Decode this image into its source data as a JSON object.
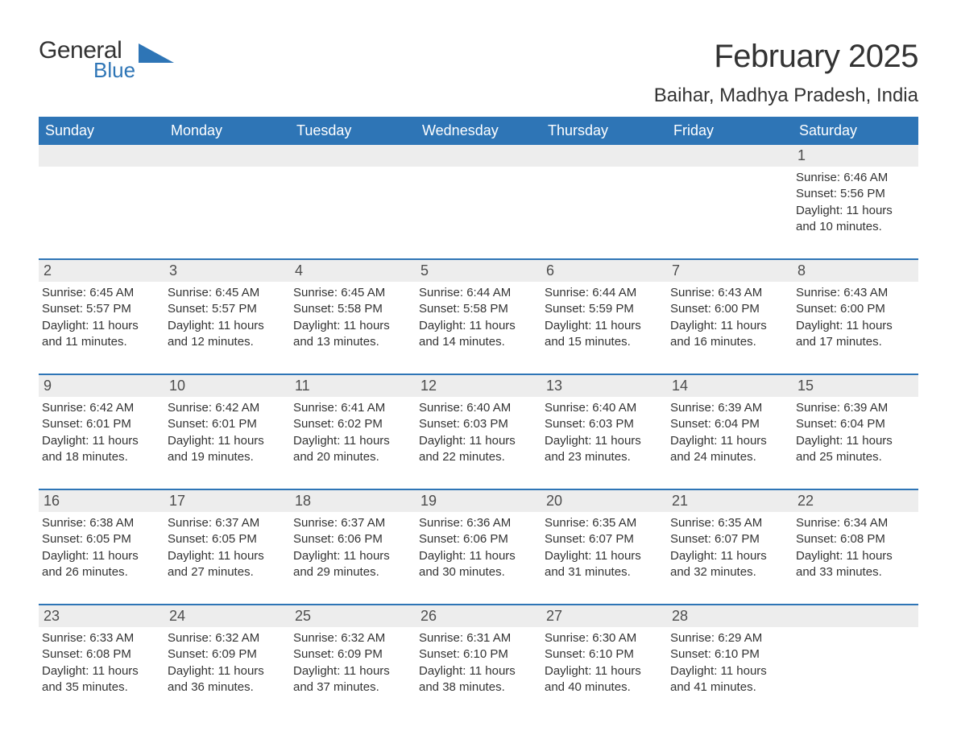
{
  "logo": {
    "word1": "General",
    "word2": "Blue",
    "wedge_color": "#2e75b6"
  },
  "title": "February 2025",
  "location": "Baihar, Madhya Pradesh, India",
  "colors": {
    "header_bg": "#2e75b6",
    "header_text": "#ffffff",
    "daynum_bg": "#ededed",
    "text": "#333333",
    "rule": "#2e75b6",
    "page_bg": "#ffffff"
  },
  "typography": {
    "title_fontsize": 40,
    "location_fontsize": 24,
    "dow_fontsize": 18,
    "daynum_fontsize": 18,
    "body_fontsize": 15
  },
  "layout": {
    "columns": 7,
    "rows": 5,
    "start_dow_index": 6
  },
  "days_of_week": [
    "Sunday",
    "Monday",
    "Tuesday",
    "Wednesday",
    "Thursday",
    "Friday",
    "Saturday"
  ],
  "labels": {
    "sunrise": "Sunrise:",
    "sunset": "Sunset:",
    "daylight": "Daylight:"
  },
  "days": [
    {
      "n": 1,
      "sunrise": "6:46 AM",
      "sunset": "5:56 PM",
      "daylight": "11 hours and 10 minutes."
    },
    {
      "n": 2,
      "sunrise": "6:45 AM",
      "sunset": "5:57 PM",
      "daylight": "11 hours and 11 minutes."
    },
    {
      "n": 3,
      "sunrise": "6:45 AM",
      "sunset": "5:57 PM",
      "daylight": "11 hours and 12 minutes."
    },
    {
      "n": 4,
      "sunrise": "6:45 AM",
      "sunset": "5:58 PM",
      "daylight": "11 hours and 13 minutes."
    },
    {
      "n": 5,
      "sunrise": "6:44 AM",
      "sunset": "5:58 PM",
      "daylight": "11 hours and 14 minutes."
    },
    {
      "n": 6,
      "sunrise": "6:44 AM",
      "sunset": "5:59 PM",
      "daylight": "11 hours and 15 minutes."
    },
    {
      "n": 7,
      "sunrise": "6:43 AM",
      "sunset": "6:00 PM",
      "daylight": "11 hours and 16 minutes."
    },
    {
      "n": 8,
      "sunrise": "6:43 AM",
      "sunset": "6:00 PM",
      "daylight": "11 hours and 17 minutes."
    },
    {
      "n": 9,
      "sunrise": "6:42 AM",
      "sunset": "6:01 PM",
      "daylight": "11 hours and 18 minutes."
    },
    {
      "n": 10,
      "sunrise": "6:42 AM",
      "sunset": "6:01 PM",
      "daylight": "11 hours and 19 minutes."
    },
    {
      "n": 11,
      "sunrise": "6:41 AM",
      "sunset": "6:02 PM",
      "daylight": "11 hours and 20 minutes."
    },
    {
      "n": 12,
      "sunrise": "6:40 AM",
      "sunset": "6:03 PM",
      "daylight": "11 hours and 22 minutes."
    },
    {
      "n": 13,
      "sunrise": "6:40 AM",
      "sunset": "6:03 PM",
      "daylight": "11 hours and 23 minutes."
    },
    {
      "n": 14,
      "sunrise": "6:39 AM",
      "sunset": "6:04 PM",
      "daylight": "11 hours and 24 minutes."
    },
    {
      "n": 15,
      "sunrise": "6:39 AM",
      "sunset": "6:04 PM",
      "daylight": "11 hours and 25 minutes."
    },
    {
      "n": 16,
      "sunrise": "6:38 AM",
      "sunset": "6:05 PM",
      "daylight": "11 hours and 26 minutes."
    },
    {
      "n": 17,
      "sunrise": "6:37 AM",
      "sunset": "6:05 PM",
      "daylight": "11 hours and 27 minutes."
    },
    {
      "n": 18,
      "sunrise": "6:37 AM",
      "sunset": "6:06 PM",
      "daylight": "11 hours and 29 minutes."
    },
    {
      "n": 19,
      "sunrise": "6:36 AM",
      "sunset": "6:06 PM",
      "daylight": "11 hours and 30 minutes."
    },
    {
      "n": 20,
      "sunrise": "6:35 AM",
      "sunset": "6:07 PM",
      "daylight": "11 hours and 31 minutes."
    },
    {
      "n": 21,
      "sunrise": "6:35 AM",
      "sunset": "6:07 PM",
      "daylight": "11 hours and 32 minutes."
    },
    {
      "n": 22,
      "sunrise": "6:34 AM",
      "sunset": "6:08 PM",
      "daylight": "11 hours and 33 minutes."
    },
    {
      "n": 23,
      "sunrise": "6:33 AM",
      "sunset": "6:08 PM",
      "daylight": "11 hours and 35 minutes."
    },
    {
      "n": 24,
      "sunrise": "6:32 AM",
      "sunset": "6:09 PM",
      "daylight": "11 hours and 36 minutes."
    },
    {
      "n": 25,
      "sunrise": "6:32 AM",
      "sunset": "6:09 PM",
      "daylight": "11 hours and 37 minutes."
    },
    {
      "n": 26,
      "sunrise": "6:31 AM",
      "sunset": "6:10 PM",
      "daylight": "11 hours and 38 minutes."
    },
    {
      "n": 27,
      "sunrise": "6:30 AM",
      "sunset": "6:10 PM",
      "daylight": "11 hours and 40 minutes."
    },
    {
      "n": 28,
      "sunrise": "6:29 AM",
      "sunset": "6:10 PM",
      "daylight": "11 hours and 41 minutes."
    }
  ]
}
